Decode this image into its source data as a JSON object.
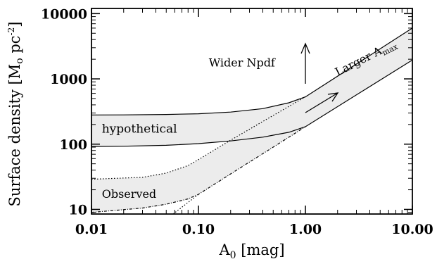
{
  "chart_data": {
    "type": "line",
    "title": "",
    "xlabel": "A",
    "xlabel_sub": "0",
    "xlabel_units": " [mag]",
    "ylabel": "Surface density [M",
    "ylabel_sym": "o",
    "ylabel_units": " pc",
    "ylabel_sup": "-2",
    "ylabel_close": "]",
    "xscale": "log",
    "yscale": "log",
    "xlim": [
      0.01,
      10.0
    ],
    "ylim": [
      8.5,
      12000
    ],
    "x_ticks": [
      {
        "value": 0.01,
        "label": "0.01"
      },
      {
        "value": 0.1,
        "label": "0.10"
      },
      {
        "value": 1.0,
        "label": "1.00"
      },
      {
        "value": 10.0,
        "label": "10.00"
      }
    ],
    "y_ticks": [
      {
        "value": 10,
        "label": "10"
      },
      {
        "value": 100,
        "label": "100"
      },
      {
        "value": 1000,
        "label": "1000"
      },
      {
        "value": 10000,
        "label": "10000"
      }
    ],
    "series": [
      {
        "key": "hyp_upper",
        "style": "solid",
        "x": [
          0.01,
          0.02,
          0.05,
          0.1,
          0.2,
          0.4,
          0.7,
          1.0,
          10.0
        ],
        "y": [
          280,
          281,
          285,
          292,
          310,
          350,
          430,
          530,
          6000
        ]
      },
      {
        "key": "hyp_lower",
        "style": "solid",
        "x": [
          0.01,
          0.02,
          0.05,
          0.1,
          0.2,
          0.4,
          0.7,
          1.0,
          10.0
        ],
        "y": [
          92,
          93,
          96,
          102,
          112,
          128,
          152,
          185,
          1950
        ]
      },
      {
        "key": "obs_upper",
        "style": "dotted",
        "x": [
          0.01,
          0.03,
          0.05,
          0.08,
          0.1,
          0.2,
          0.5,
          1.0
        ],
        "y": [
          29,
          31,
          36,
          47,
          58,
          115,
          275,
          530
        ]
      },
      {
        "key": "obs_lower",
        "style": "dashdot",
        "x": [
          0.01,
          0.03,
          0.05,
          0.08,
          0.1,
          0.2,
          0.5,
          1.0
        ],
        "y": [
          9,
          10.5,
          12,
          14.5,
          17,
          35,
          90,
          185
        ]
      },
      {
        "key": "obs_line_extension",
        "style": "dotted",
        "x": [
          0.058,
          0.1
        ],
        "y": [
          8.5,
          17
        ]
      }
    ],
    "annotations": [
      {
        "key": "wider",
        "text": "Wider Npdf",
        "x": 0.125,
        "y": 1550
      },
      {
        "key": "hypothetical",
        "text": "hypothetical",
        "x": 0.0125,
        "y": 150
      },
      {
        "key": "observed",
        "text": "Observed",
        "x": 0.0125,
        "y": 15
      },
      {
        "key": "larger",
        "text": "Larger A",
        "sub": "max",
        "x": 2.0,
        "y": 1100,
        "angle": -27
      }
    ]
  }
}
